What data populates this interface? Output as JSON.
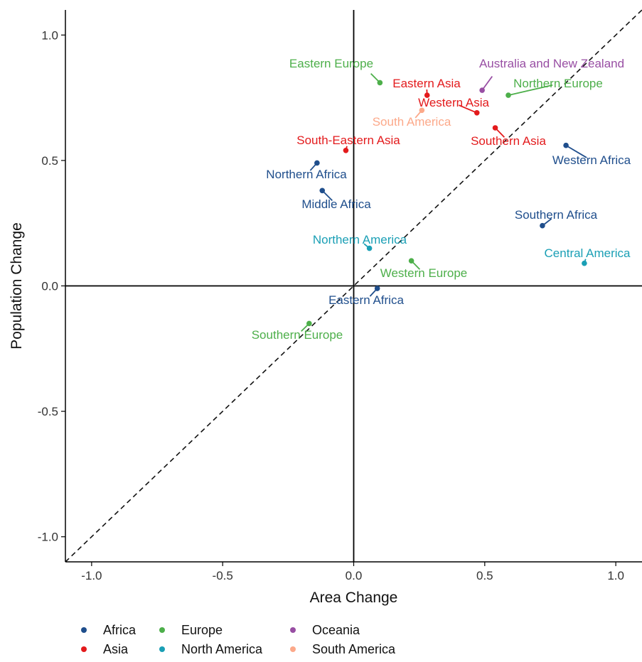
{
  "chart_data": {
    "type": "scatter",
    "title": "",
    "xlabel": "Area Change",
    "ylabel": "Population Change",
    "xlim": [
      -1.1,
      1.1
    ],
    "ylim": [
      -1.1,
      1.1
    ],
    "x_ticks": [
      "-1.0",
      "-0.5",
      "0.0",
      "0.5",
      "1.0"
    ],
    "y_ticks": [
      "-1.0",
      "-0.5",
      "0.0",
      "0.5",
      "1.0"
    ],
    "grid": false,
    "reference_lines": [
      "x = 0",
      "y = 0",
      "y = x (dashed)"
    ],
    "legend_position": "bottom",
    "groups": [
      {
        "name": "Africa",
        "color": "#1f4e8c"
      },
      {
        "name": "Asia",
        "color": "#e31a1c"
      },
      {
        "name": "Europe",
        "color": "#4daf4a"
      },
      {
        "name": "North America",
        "color": "#1a9fb5"
      },
      {
        "name": "Oceania",
        "color": "#984ea3"
      },
      {
        "name": "South America",
        "color": "#fca98a"
      }
    ],
    "points": [
      {
        "label": "Eastern Europe",
        "group": "Europe",
        "x": 0.1,
        "y": 0.81
      },
      {
        "label": "Eastern Asia",
        "group": "Asia",
        "x": 0.28,
        "y": 0.76
      },
      {
        "label": "Australia and New Zealand",
        "group": "Oceania",
        "x": 0.49,
        "y": 0.78
      },
      {
        "label": "Northern Europe",
        "group": "Europe",
        "x": 0.59,
        "y": 0.76
      },
      {
        "label": "Western Asia",
        "group": "Asia",
        "x": 0.47,
        "y": 0.69
      },
      {
        "label": "South America",
        "group": "South America",
        "x": 0.26,
        "y": 0.7
      },
      {
        "label": "Southern Asia",
        "group": "Asia",
        "x": 0.54,
        "y": 0.63
      },
      {
        "label": "South-Eastern Asia",
        "group": "Asia",
        "x": -0.03,
        "y": 0.54
      },
      {
        "label": "Northern Africa",
        "group": "Africa",
        "x": -0.14,
        "y": 0.49
      },
      {
        "label": "Western Africa",
        "group": "Africa",
        "x": 0.81,
        "y": 0.56
      },
      {
        "label": "Middle Africa",
        "group": "Africa",
        "x": -0.12,
        "y": 0.38
      },
      {
        "label": "Southern Africa",
        "group": "Africa",
        "x": 0.72,
        "y": 0.24
      },
      {
        "label": "Northern America",
        "group": "North America",
        "x": 0.06,
        "y": 0.15
      },
      {
        "label": "Central America",
        "group": "North America",
        "x": 0.88,
        "y": 0.09
      },
      {
        "label": "Western Europe",
        "group": "Europe",
        "x": 0.22,
        "y": 0.1
      },
      {
        "label": "Eastern Africa",
        "group": "Africa",
        "x": 0.09,
        "y": -0.01
      },
      {
        "label": "Southern Europe",
        "group": "Europe",
        "x": -0.17,
        "y": -0.15
      }
    ]
  }
}
